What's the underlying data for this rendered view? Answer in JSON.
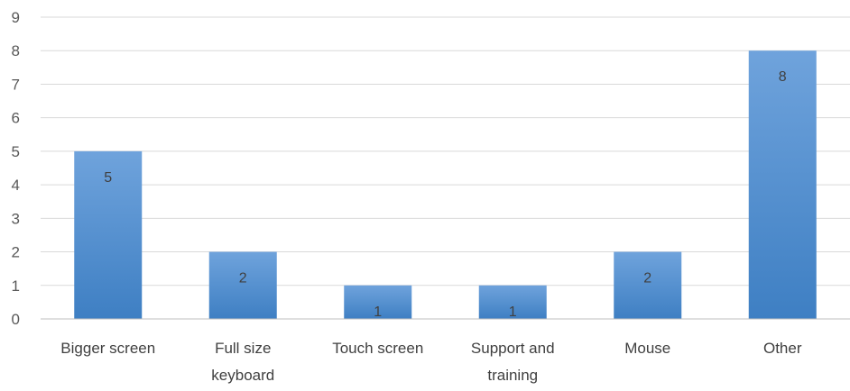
{
  "chart_data": {
    "type": "bar",
    "title": "",
    "xlabel": "",
    "ylabel": "",
    "categories": [
      [
        "Bigger screen"
      ],
      [
        "Full size",
        "keyboard"
      ],
      [
        "Touch screen"
      ],
      [
        "Support and",
        "training"
      ],
      [
        "Mouse"
      ],
      [
        "Other"
      ]
    ],
    "values": [
      5,
      2,
      1,
      1,
      2,
      8
    ],
    "ylim": [
      0,
      9
    ],
    "yticks": [
      0,
      1,
      2,
      3,
      4,
      5,
      6,
      7,
      8,
      9
    ],
    "grid": true,
    "legend": "none",
    "data_labels": true,
    "colors": {
      "bar_top": "#6fa3dc",
      "bar_bottom": "#3e7fc3",
      "gridline": "#d9d9d9",
      "axis": "#bfbfbf"
    }
  }
}
